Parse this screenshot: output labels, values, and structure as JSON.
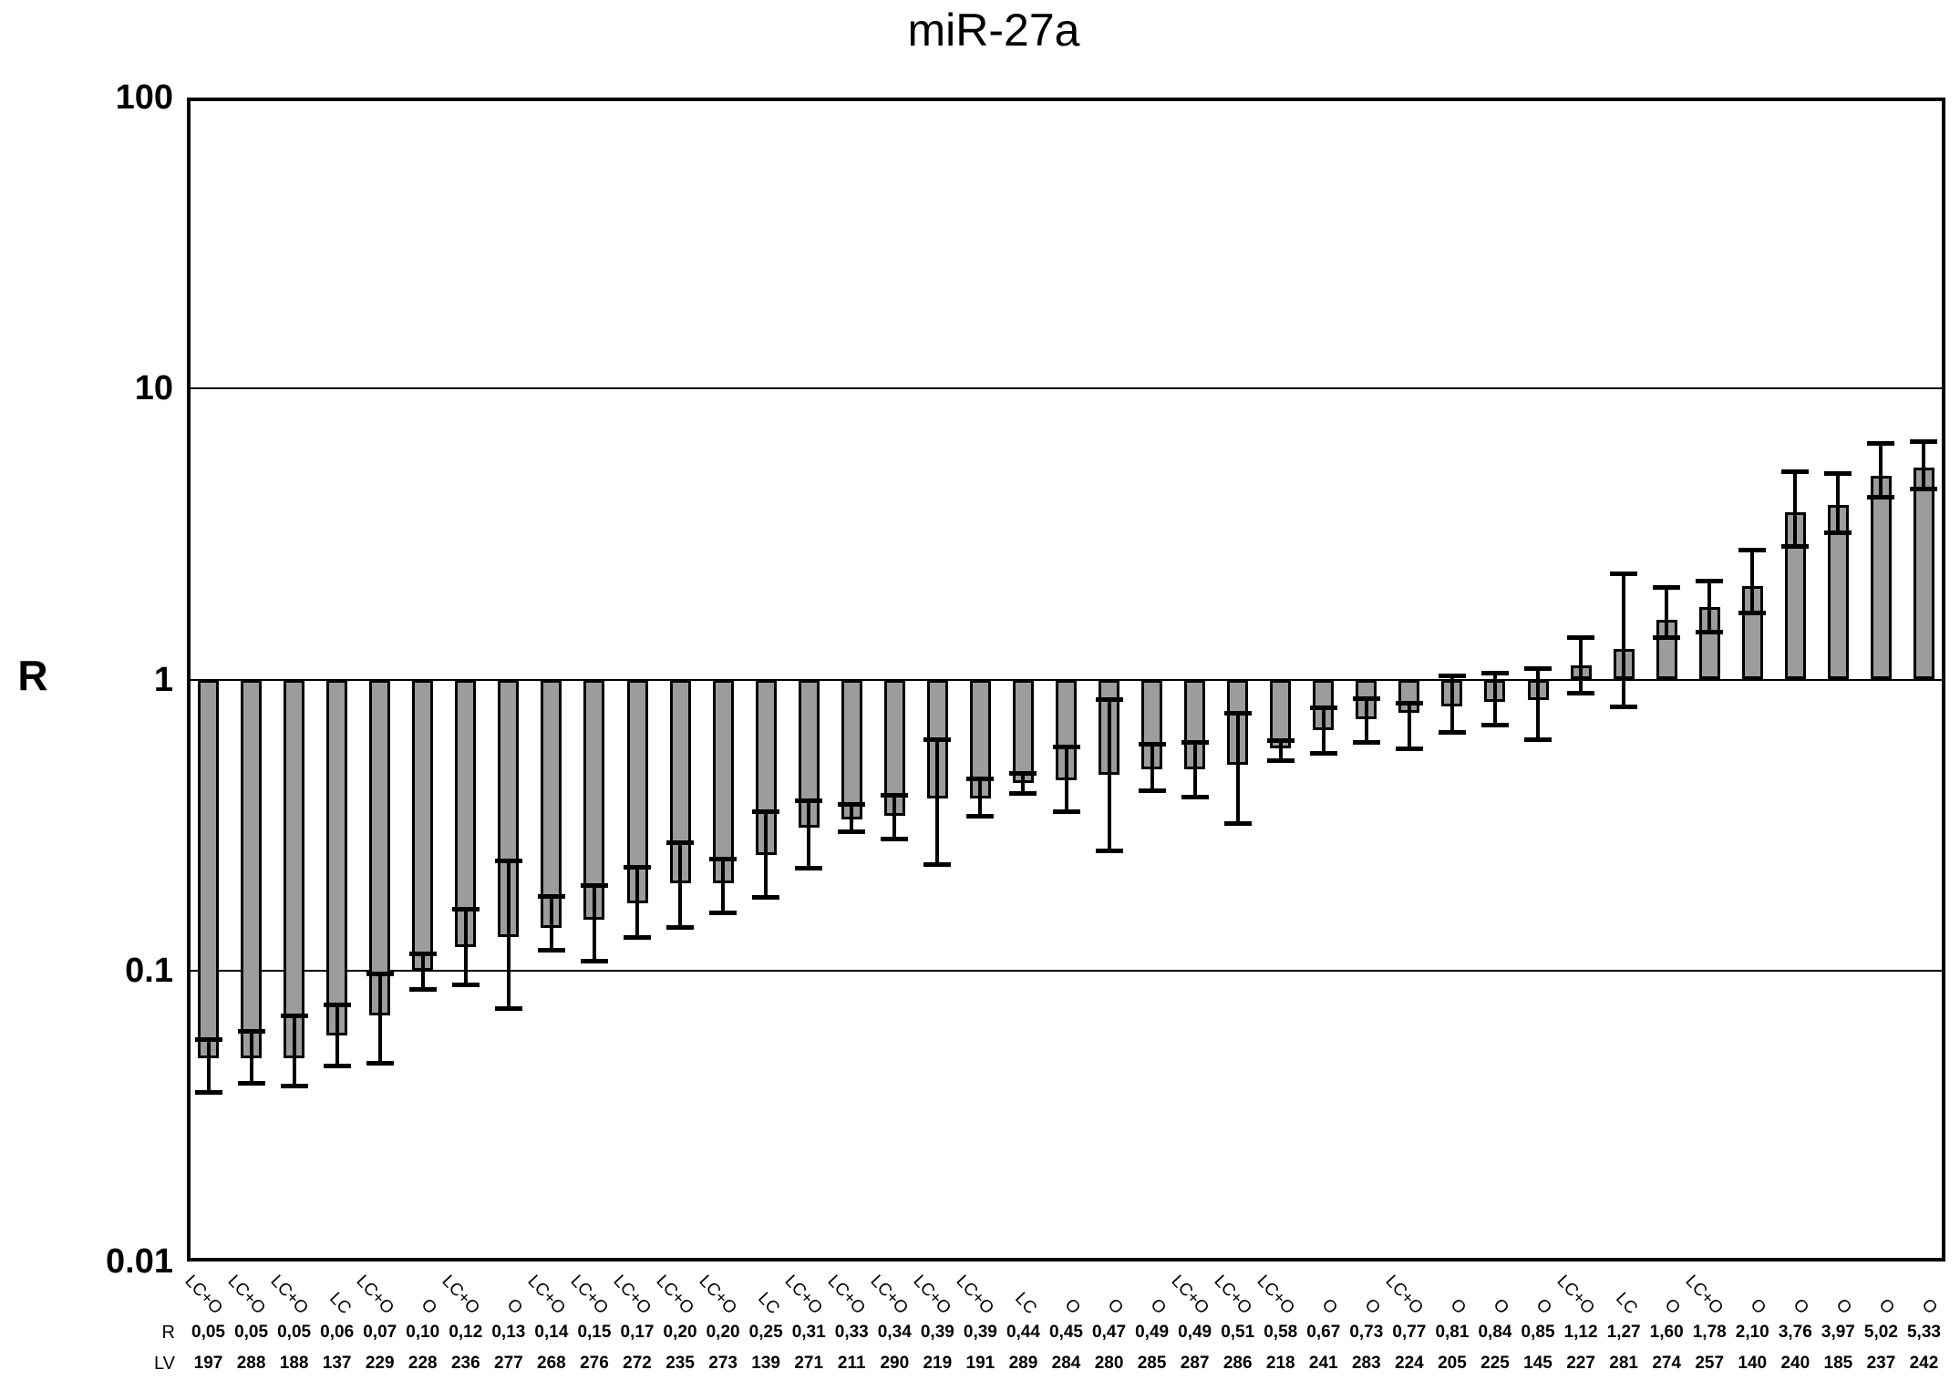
{
  "chart_data": {
    "type": "bar",
    "scale": "log",
    "title": "miR-27a",
    "ylabel": "R",
    "ylim": [
      0.01,
      100
    ],
    "yticks": [
      {
        "label": "100",
        "value": 100
      },
      {
        "label": "10",
        "value": 10
      },
      {
        "label": "1",
        "value": 1
      },
      {
        "label": "0.1",
        "value": 0.1
      },
      {
        "label": "0.01",
        "value": 0.01
      }
    ],
    "gridlines": [
      10,
      1,
      0.1
    ],
    "baseline": 1,
    "bar_color": "#9c9c9c",
    "bar_border_color": "#000000",
    "legend_position": "none",
    "grid": "horizontal",
    "row_headers": {
      "r": "R",
      "lv": "LV"
    },
    "bars": [
      {
        "group": "LC+O",
        "r_label": "0,05",
        "r": 0.05,
        "err_lo": 0.038,
        "err_hi": 0.058,
        "lv": "197"
      },
      {
        "group": "LC+O",
        "r_label": "0,05",
        "r": 0.05,
        "err_lo": 0.041,
        "err_hi": 0.062,
        "lv": "288"
      },
      {
        "group": "LC+O",
        "r_label": "0,05",
        "r": 0.05,
        "err_lo": 0.04,
        "err_hi": 0.07,
        "lv": "188"
      },
      {
        "group": "LC",
        "r_label": "0,06",
        "r": 0.06,
        "err_lo": 0.047,
        "err_hi": 0.076,
        "lv": "137"
      },
      {
        "group": "LC+O",
        "r_label": "0,07",
        "r": 0.07,
        "err_lo": 0.048,
        "err_hi": 0.097,
        "lv": "229"
      },
      {
        "group": "O",
        "r_label": "0,10",
        "r": 0.1,
        "err_lo": 0.086,
        "err_hi": 0.114,
        "lv": "228"
      },
      {
        "group": "LC+O",
        "r_label": "0,12",
        "r": 0.12,
        "err_lo": 0.089,
        "err_hi": 0.163,
        "lv": "236"
      },
      {
        "group": "O",
        "r_label": "0,13",
        "r": 0.13,
        "err_lo": 0.074,
        "err_hi": 0.238,
        "lv": "277"
      },
      {
        "group": "LC+O",
        "r_label": "0,14",
        "r": 0.14,
        "err_lo": 0.117,
        "err_hi": 0.18,
        "lv": "268"
      },
      {
        "group": "LC+O",
        "r_label": "0,15",
        "r": 0.15,
        "err_lo": 0.108,
        "err_hi": 0.196,
        "lv": "276"
      },
      {
        "group": "LC+O",
        "r_label": "0,17",
        "r": 0.17,
        "err_lo": 0.13,
        "err_hi": 0.226,
        "lv": "272"
      },
      {
        "group": "LC+O",
        "r_label": "0,20",
        "r": 0.2,
        "err_lo": 0.141,
        "err_hi": 0.275,
        "lv": "235"
      },
      {
        "group": "LC+O",
        "r_label": "0,20",
        "r": 0.2,
        "err_lo": 0.158,
        "err_hi": 0.242,
        "lv": "273"
      },
      {
        "group": "LC",
        "r_label": "0,25",
        "r": 0.25,
        "err_lo": 0.179,
        "err_hi": 0.352,
        "lv": "139"
      },
      {
        "group": "LC+O",
        "r_label": "0,31",
        "r": 0.31,
        "err_lo": 0.224,
        "err_hi": 0.384,
        "lv": "271"
      },
      {
        "group": "LC+O",
        "r_label": "0,33",
        "r": 0.33,
        "err_lo": 0.3,
        "err_hi": 0.371,
        "lv": "211"
      },
      {
        "group": "LC+O",
        "r_label": "0,34",
        "r": 0.34,
        "err_lo": 0.283,
        "err_hi": 0.401,
        "lv": "290"
      },
      {
        "group": "LC+O",
        "r_label": "0,39",
        "r": 0.39,
        "err_lo": 0.231,
        "err_hi": 0.621,
        "lv": "219"
      },
      {
        "group": "LC+O",
        "r_label": "0,39",
        "r": 0.39,
        "err_lo": 0.339,
        "err_hi": 0.457,
        "lv": "191"
      },
      {
        "group": "LC",
        "r_label": "0,44",
        "r": 0.44,
        "err_lo": 0.406,
        "err_hi": 0.477,
        "lv": "289"
      },
      {
        "group": "O",
        "r_label": "0,45",
        "r": 0.45,
        "err_lo": 0.352,
        "err_hi": 0.586,
        "lv": "284"
      },
      {
        "group": "O",
        "r_label": "0,47",
        "r": 0.47,
        "err_lo": 0.257,
        "err_hi": 0.856,
        "lv": "280"
      },
      {
        "group": "O",
        "r_label": "0,49",
        "r": 0.49,
        "err_lo": 0.414,
        "err_hi": 0.598,
        "lv": "285"
      },
      {
        "group": "LC+O",
        "r_label": "0,49",
        "r": 0.49,
        "err_lo": 0.394,
        "err_hi": 0.608,
        "lv": "287"
      },
      {
        "group": "LC+O",
        "r_label": "0,51",
        "r": 0.51,
        "err_lo": 0.32,
        "err_hi": 0.768,
        "lv": "286"
      },
      {
        "group": "LC+O",
        "r_label": "0,58",
        "r": 0.58,
        "err_lo": 0.526,
        "err_hi": 0.616,
        "lv": "218"
      },
      {
        "group": "O",
        "r_label": "0,67",
        "r": 0.67,
        "err_lo": 0.558,
        "err_hi": 0.798,
        "lv": "241"
      },
      {
        "group": "O",
        "r_label": "0,73",
        "r": 0.73,
        "err_lo": 0.608,
        "err_hi": 0.861,
        "lv": "283"
      },
      {
        "group": "LC+O",
        "r_label": "0,77",
        "r": 0.77,
        "err_lo": 0.576,
        "err_hi": 0.828,
        "lv": "224"
      },
      {
        "group": "O",
        "r_label": "0,81",
        "r": 0.81,
        "err_lo": 0.659,
        "err_hi": 1.03,
        "lv": "205"
      },
      {
        "group": "O",
        "r_label": "0,84",
        "r": 0.84,
        "err_lo": 0.698,
        "err_hi": 1.05,
        "lv": "225"
      },
      {
        "group": "O",
        "r_label": "0,85",
        "r": 0.85,
        "err_lo": 0.62,
        "err_hi": 1.09,
        "lv": "145"
      },
      {
        "group": "LC+O",
        "r_label": "1,12",
        "r": 1.12,
        "err_lo": 0.896,
        "err_hi": 1.39,
        "lv": "227"
      },
      {
        "group": "LC",
        "r_label": "1,27",
        "r": 1.27,
        "err_lo": 0.806,
        "err_hi": 2.31,
        "lv": "281"
      },
      {
        "group": "O",
        "r_label": "1,60",
        "r": 1.6,
        "err_lo": 1.39,
        "err_hi": 2.07,
        "lv": "274"
      },
      {
        "group": "LC+O",
        "r_label": "1,78",
        "r": 1.78,
        "err_lo": 1.46,
        "err_hi": 2.18,
        "lv": "257"
      },
      {
        "group": "O",
        "r_label": "2,10",
        "r": 2.1,
        "err_lo": 1.69,
        "err_hi": 2.78,
        "lv": "140"
      },
      {
        "group": "O",
        "r_label": "3,76",
        "r": 3.76,
        "err_lo": 2.87,
        "err_hi": 5.16,
        "lv": "240"
      },
      {
        "group": "O",
        "r_label": "3,97",
        "r": 3.97,
        "err_lo": 3.19,
        "err_hi": 5.09,
        "lv": "185"
      },
      {
        "group": "O",
        "r_label": "5,02",
        "r": 5.02,
        "err_lo": 4.23,
        "err_hi": 6.49,
        "lv": "237"
      },
      {
        "group": "O",
        "r_label": "5,33",
        "r": 5.33,
        "err_lo": 4.53,
        "err_hi": 6.58,
        "lv": "242"
      }
    ]
  }
}
